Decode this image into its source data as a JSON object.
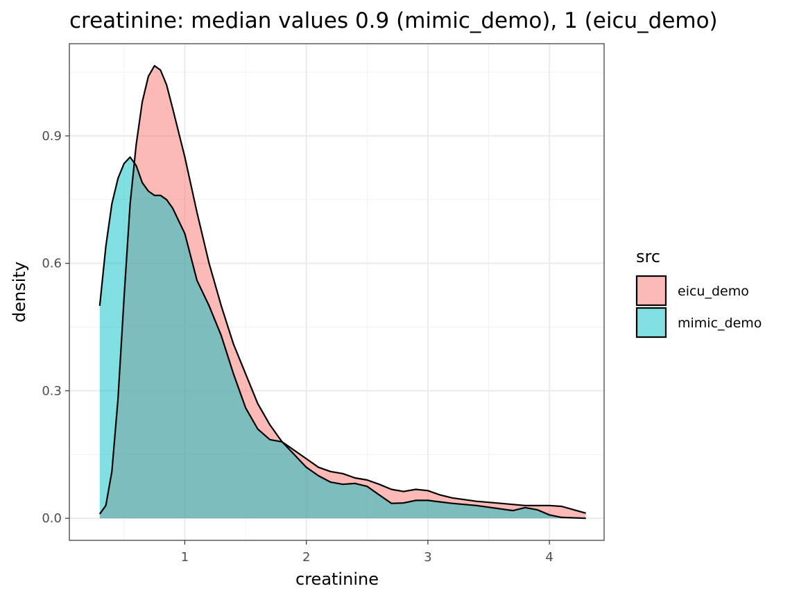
{
  "chart_data": {
    "type": "area",
    "subtype": "density",
    "title": "creatinine: median values 0.9 (mimic_demo), 1 (eicu_demo)",
    "xlabel": "creatinine",
    "ylabel": "density",
    "xlim": [
      0.05,
      4.45
    ],
    "ylim": [
      -0.052,
      1.117
    ],
    "x_ticks": [
      1,
      2,
      3,
      4
    ],
    "x_minor": [
      0.5,
      1.5,
      2.5,
      3.5
    ],
    "y_ticks": [
      0.0,
      0.3,
      0.6,
      0.9
    ],
    "y_tick_labels": [
      "0.0",
      "0.3",
      "0.6",
      "0.9"
    ],
    "y_minor": [
      0.15,
      0.45,
      0.75,
      1.05
    ],
    "grid": true,
    "legend": {
      "title": "src",
      "placement": "right"
    },
    "series": [
      {
        "name": "eicu_demo",
        "color": "#F8766D",
        "points": [
          [
            0.3,
            0.01
          ],
          [
            0.35,
            0.03
          ],
          [
            0.4,
            0.11
          ],
          [
            0.45,
            0.28
          ],
          [
            0.5,
            0.52
          ],
          [
            0.55,
            0.74
          ],
          [
            0.6,
            0.88
          ],
          [
            0.65,
            0.98
          ],
          [
            0.7,
            1.04
          ],
          [
            0.75,
            1.065
          ],
          [
            0.8,
            1.055
          ],
          [
            0.85,
            1.02
          ],
          [
            0.9,
            0.965
          ],
          [
            1.0,
            0.85
          ],
          [
            1.1,
            0.72
          ],
          [
            1.2,
            0.6
          ],
          [
            1.3,
            0.5
          ],
          [
            1.4,
            0.41
          ],
          [
            1.5,
            0.34
          ],
          [
            1.6,
            0.27
          ],
          [
            1.7,
            0.22
          ],
          [
            1.8,
            0.18
          ],
          [
            1.9,
            0.16
          ],
          [
            2.0,
            0.14
          ],
          [
            2.1,
            0.12
          ],
          [
            2.2,
            0.11
          ],
          [
            2.3,
            0.105
          ],
          [
            2.4,
            0.095
          ],
          [
            2.5,
            0.09
          ],
          [
            2.6,
            0.08
          ],
          [
            2.7,
            0.068
          ],
          [
            2.8,
            0.063
          ],
          [
            2.9,
            0.068
          ],
          [
            3.0,
            0.065
          ],
          [
            3.1,
            0.055
          ],
          [
            3.2,
            0.048
          ],
          [
            3.4,
            0.04
          ],
          [
            3.6,
            0.035
          ],
          [
            3.8,
            0.03
          ],
          [
            4.0,
            0.03
          ],
          [
            4.1,
            0.028
          ],
          [
            4.2,
            0.02
          ],
          [
            4.3,
            0.012
          ]
        ]
      },
      {
        "name": "mimic_demo",
        "color": "#00BFC4",
        "points": [
          [
            0.3,
            0.5
          ],
          [
            0.35,
            0.64
          ],
          [
            0.4,
            0.74
          ],
          [
            0.45,
            0.8
          ],
          [
            0.5,
            0.835
          ],
          [
            0.55,
            0.85
          ],
          [
            0.6,
            0.83
          ],
          [
            0.65,
            0.79
          ],
          [
            0.7,
            0.77
          ],
          [
            0.75,
            0.76
          ],
          [
            0.8,
            0.76
          ],
          [
            0.85,
            0.75
          ],
          [
            0.9,
            0.73
          ],
          [
            1.0,
            0.67
          ],
          [
            1.1,
            0.56
          ],
          [
            1.2,
            0.5
          ],
          [
            1.3,
            0.43
          ],
          [
            1.4,
            0.34
          ],
          [
            1.5,
            0.26
          ],
          [
            1.6,
            0.21
          ],
          [
            1.7,
            0.185
          ],
          [
            1.8,
            0.18
          ],
          [
            1.9,
            0.15
          ],
          [
            2.0,
            0.12
          ],
          [
            2.1,
            0.1
          ],
          [
            2.2,
            0.085
          ],
          [
            2.3,
            0.08
          ],
          [
            2.4,
            0.082
          ],
          [
            2.5,
            0.075
          ],
          [
            2.6,
            0.055
          ],
          [
            2.7,
            0.035
          ],
          [
            2.8,
            0.036
          ],
          [
            2.9,
            0.042
          ],
          [
            3.0,
            0.042
          ],
          [
            3.2,
            0.035
          ],
          [
            3.4,
            0.03
          ],
          [
            3.6,
            0.022
          ],
          [
            3.7,
            0.018
          ],
          [
            3.8,
            0.025
          ],
          [
            3.9,
            0.02
          ],
          [
            4.0,
            0.008
          ],
          [
            4.1,
            0.002
          ],
          [
            4.3,
            0.0
          ]
        ]
      }
    ]
  }
}
